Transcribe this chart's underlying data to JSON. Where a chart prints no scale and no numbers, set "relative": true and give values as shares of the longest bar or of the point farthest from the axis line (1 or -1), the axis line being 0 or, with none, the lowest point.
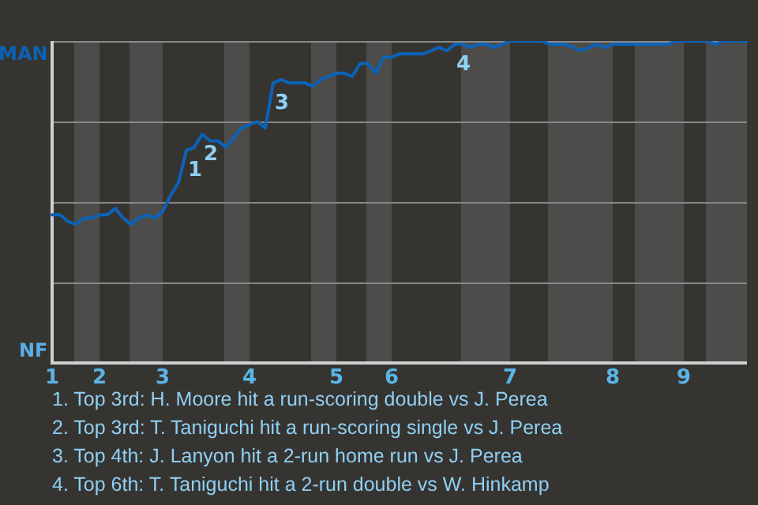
{
  "chart_data": {
    "type": "line",
    "relative": true,
    "categories": [
      "1",
      null,
      null,
      null,
      null,
      null,
      "2",
      null,
      null,
      null,
      null,
      null,
      null,
      null,
      "3",
      null,
      null,
      null,
      null,
      null,
      null,
      null,
      null,
      null,
      null,
      "4",
      null,
      null,
      null,
      null,
      null,
      null,
      null,
      null,
      null,
      null,
      "5",
      null,
      null,
      null,
      null,
      null,
      null,
      "6",
      null,
      null,
      null,
      null,
      null,
      null,
      null,
      null,
      null,
      null,
      null,
      null,
      null,
      null,
      "7",
      null,
      null,
      null,
      null,
      null,
      null,
      null,
      null,
      null,
      null,
      null,
      null,
      "8",
      null,
      null,
      null,
      null,
      null,
      null,
      null,
      null,
      "9",
      null,
      null,
      null,
      null,
      null,
      null,
      null,
      null
    ],
    "grid": "y",
    "marker": "none",
    "series": [
      {
        "color": "#0b63b8",
        "values": [
          0.46,
          0.46,
          0.44,
          0.43,
          0.45,
          0.45,
          0.46,
          0.46,
          0.48,
          0.45,
          0.43,
          0.45,
          0.46,
          0.45,
          0.47,
          0.52,
          0.56,
          0.66,
          0.67,
          0.71,
          0.69,
          0.69,
          0.67,
          0.7,
          0.73,
          0.74,
          0.75,
          0.73,
          0.87,
          0.88,
          0.87,
          0.87,
          0.87,
          0.86,
          0.88,
          0.89,
          0.9,
          0.9,
          0.89,
          0.93,
          0.93,
          0.9,
          0.95,
          0.95,
          0.96,
          0.96,
          0.96,
          0.96,
          0.97,
          0.98,
          0.97,
          0.99,
          0.99,
          0.98,
          0.99,
          0.99,
          0.98,
          0.99,
          1,
          1,
          1,
          1,
          1,
          0.99,
          0.99,
          0.99,
          0.98,
          0.97,
          0.98,
          0.99,
          0.98,
          0.99,
          0.99,
          0.99,
          0.99,
          0.99,
          0.99,
          0.99,
          0.99,
          1,
          1,
          1,
          1,
          1,
          0.99,
          1,
          1,
          1,
          1
        ]
      }
    ],
    "annotations": [
      "MAN",
      "NF",
      {
        "text": "1",
        "y": 0.66
      },
      {
        "text": "2",
        "y": 0.71
      },
      {
        "text": "3",
        "y": 0.87
      },
      {
        "text": "4",
        "y": 0.99
      },
      "1. Top 3rd: H. Moore hit a run-scoring double vs J. Perea",
      "2. Top 3rd: T. Taniguchi hit a run-scoring single vs J. Perea",
      "3. Top 4th: J. Lanyon hit a 2-run home run vs J. Perea",
      "4. Top 6th: T. Taniguchi hit a 2-run double vs W. Hinkamp"
    ]
  }
}
